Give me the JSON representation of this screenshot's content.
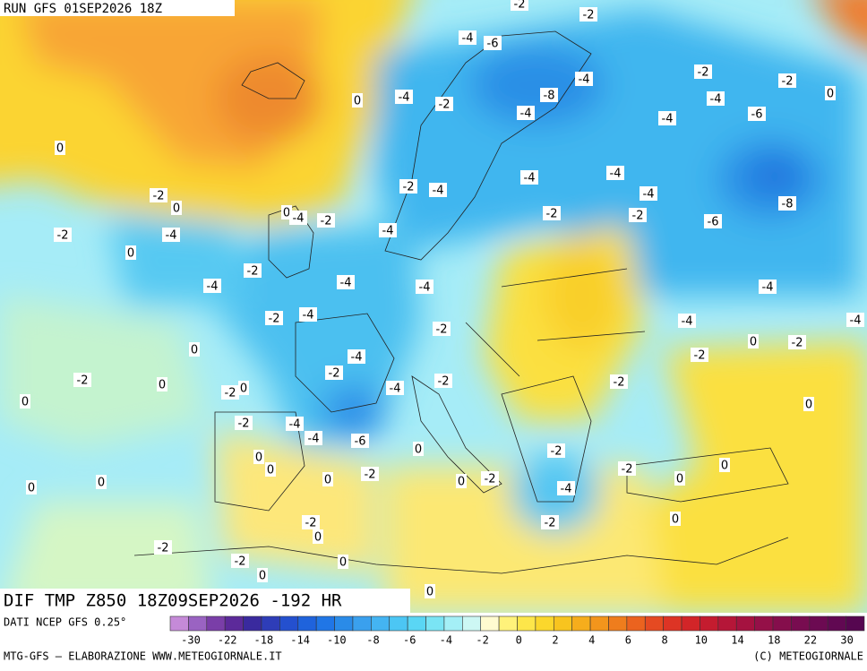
{
  "header": {
    "run": "RUN GFS 01SEP2026 18Z"
  },
  "map": {
    "title": "DIF TMP Z850 18Z09SEP2026 -192 HR",
    "labels": [
      -2,
      -2,
      -4,
      -6,
      -4,
      -2,
      -2,
      0,
      0,
      -4,
      -2,
      -8,
      -4,
      -4,
      -4,
      -6,
      0,
      -4,
      -4,
      -2,
      -4,
      -4,
      -2,
      0,
      -8,
      0,
      -4,
      -2,
      -2,
      -2,
      -6,
      -4,
      -2,
      -4,
      0,
      -2,
      -4,
      -4,
      -4,
      -4,
      -2,
      -4,
      -4,
      -4,
      -2,
      0,
      -2,
      0,
      -2,
      -4,
      -2,
      0,
      -2,
      -2,
      0,
      -4,
      -2,
      -2,
      0,
      0,
      -2,
      -4,
      -4,
      -6,
      0,
      -2,
      0,
      0,
      -2,
      -2,
      0,
      0,
      0,
      0,
      -2,
      0,
      0,
      -4,
      -2,
      -2,
      0,
      0,
      -2,
      -2,
      0,
      0,
      0
    ]
  },
  "footer": {
    "source": "DATI NCEP GFS 0.25°",
    "colorbar_ticks": [
      -30,
      -22,
      -18,
      -14,
      -10,
      -8,
      -6,
      -4,
      -2,
      0,
      2,
      4,
      6,
      8,
      10,
      14,
      18,
      22,
      30
    ],
    "credit_left": "MTG-GFS – ELABORAZIONE WWW.METEOGIORNALE.IT",
    "credit_right": "(C) METEOGIORNALE"
  }
}
